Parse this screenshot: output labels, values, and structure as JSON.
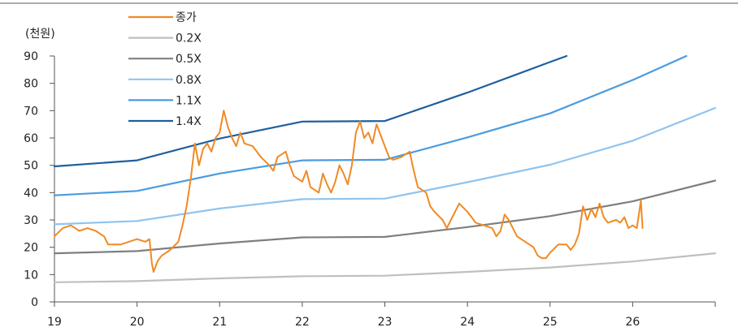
{
  "chart_data": {
    "type": "line",
    "ylabel": "(천원)",
    "xlim": [
      19,
      27
    ],
    "ylim": [
      0,
      90
    ],
    "x_ticks": [
      19,
      20,
      21,
      22,
      23,
      24,
      25,
      26
    ],
    "y_ticks": [
      0,
      10,
      20,
      30,
      40,
      50,
      60,
      70,
      80,
      90
    ],
    "legend_position": "top-left",
    "series": [
      {
        "name": "종가",
        "color": "#F08A24",
        "points": [
          [
            19.0,
            24
          ],
          [
            19.1,
            27
          ],
          [
            19.2,
            28
          ],
          [
            19.3,
            26
          ],
          [
            19.4,
            27
          ],
          [
            19.5,
            26
          ],
          [
            19.6,
            24
          ],
          [
            19.65,
            21
          ],
          [
            19.8,
            21
          ],
          [
            19.9,
            22
          ],
          [
            20.0,
            23
          ],
          [
            20.1,
            22
          ],
          [
            20.15,
            23
          ],
          [
            20.18,
            14
          ],
          [
            20.2,
            11
          ],
          [
            20.25,
            15
          ],
          [
            20.3,
            17
          ],
          [
            20.4,
            19
          ],
          [
            20.5,
            22
          ],
          [
            20.55,
            28
          ],
          [
            20.6,
            35
          ],
          [
            20.65,
            45
          ],
          [
            20.7,
            58
          ],
          [
            20.75,
            50
          ],
          [
            20.8,
            56
          ],
          [
            20.85,
            58
          ],
          [
            20.9,
            55
          ],
          [
            20.95,
            60
          ],
          [
            21.0,
            62
          ],
          [
            21.05,
            70
          ],
          [
            21.1,
            64
          ],
          [
            21.15,
            60
          ],
          [
            21.2,
            57
          ],
          [
            21.25,
            62
          ],
          [
            21.3,
            58
          ],
          [
            21.4,
            57
          ],
          [
            21.5,
            53
          ],
          [
            21.6,
            50
          ],
          [
            21.65,
            48
          ],
          [
            21.7,
            53
          ],
          [
            21.8,
            55
          ],
          [
            21.85,
            50
          ],
          [
            21.9,
            46
          ],
          [
            22.0,
            44
          ],
          [
            22.05,
            48
          ],
          [
            22.1,
            42
          ],
          [
            22.2,
            40
          ],
          [
            22.25,
            47
          ],
          [
            22.3,
            43
          ],
          [
            22.35,
            40
          ],
          [
            22.4,
            44
          ],
          [
            22.45,
            50
          ],
          [
            22.5,
            47
          ],
          [
            22.55,
            43
          ],
          [
            22.6,
            50
          ],
          [
            22.65,
            62
          ],
          [
            22.7,
            66
          ],
          [
            22.75,
            60
          ],
          [
            22.8,
            62
          ],
          [
            22.85,
            58
          ],
          [
            22.9,
            65
          ],
          [
            23.0,
            57
          ],
          [
            23.05,
            53
          ],
          [
            23.1,
            52
          ],
          [
            23.2,
            53
          ],
          [
            23.3,
            55
          ],
          [
            23.35,
            48
          ],
          [
            23.4,
            42
          ],
          [
            23.5,
            40
          ],
          [
            23.55,
            35
          ],
          [
            23.6,
            33
          ],
          [
            23.7,
            30
          ],
          [
            23.75,
            27
          ],
          [
            23.8,
            30
          ],
          [
            23.9,
            36
          ],
          [
            24.0,
            33
          ],
          [
            24.1,
            29
          ],
          [
            24.2,
            28
          ],
          [
            24.3,
            27
          ],
          [
            24.35,
            24
          ],
          [
            24.4,
            26
          ],
          [
            24.45,
            32
          ],
          [
            24.5,
            30
          ],
          [
            24.55,
            27
          ],
          [
            24.6,
            24
          ],
          [
            24.7,
            22
          ],
          [
            24.8,
            20
          ],
          [
            24.85,
            17
          ],
          [
            24.9,
            16
          ],
          [
            24.95,
            16
          ],
          [
            25.0,
            18
          ],
          [
            25.1,
            21
          ],
          [
            25.2,
            21
          ],
          [
            25.25,
            19
          ],
          [
            25.3,
            21
          ],
          [
            25.35,
            25
          ],
          [
            25.4,
            35
          ],
          [
            25.45,
            30
          ],
          [
            25.5,
            34
          ],
          [
            25.55,
            31
          ],
          [
            25.6,
            36
          ],
          [
            25.65,
            31
          ],
          [
            25.7,
            29
          ],
          [
            25.8,
            30
          ],
          [
            25.85,
            29
          ],
          [
            25.9,
            31
          ],
          [
            25.95,
            27
          ],
          [
            26.0,
            28
          ],
          [
            26.05,
            27
          ],
          [
            26.1,
            37
          ],
          [
            26.12,
            27
          ]
        ]
      },
      {
        "name": "0.2X",
        "color": "#BFBFBF",
        "points": [
          [
            19,
            7.2
          ],
          [
            20,
            7.6
          ],
          [
            21,
            8.6
          ],
          [
            22,
            9.4
          ],
          [
            23,
            9.6
          ],
          [
            24,
            11
          ],
          [
            25,
            12.6
          ],
          [
            26,
            14.8
          ],
          [
            27,
            17.8
          ]
        ]
      },
      {
        "name": "0.5X",
        "color": "#7F7F7F",
        "points": [
          [
            19,
            17.8
          ],
          [
            20,
            18.6
          ],
          [
            21,
            21.4
          ],
          [
            22,
            23.6
          ],
          [
            23,
            23.8
          ],
          [
            24,
            27.4
          ],
          [
            25,
            31.4
          ],
          [
            26,
            36.8
          ],
          [
            27,
            44.4
          ]
        ]
      },
      {
        "name": "0.8X",
        "color": "#8EC4F0",
        "points": [
          [
            19,
            28.4
          ],
          [
            20,
            29.6
          ],
          [
            21,
            34.2
          ],
          [
            22,
            37.6
          ],
          [
            23,
            37.8
          ],
          [
            24,
            43.8
          ],
          [
            25,
            50.2
          ],
          [
            26,
            59
          ],
          [
            27,
            71
          ]
        ]
      },
      {
        "name": "1.1X",
        "color": "#4A9BE0",
        "points": [
          [
            19,
            39
          ],
          [
            20,
            40.6
          ],
          [
            21,
            47
          ],
          [
            22,
            51.8
          ],
          [
            23,
            52
          ],
          [
            24,
            60.2
          ],
          [
            25,
            69
          ],
          [
            26,
            81.2
          ],
          [
            26.65,
            90
          ]
        ]
      },
      {
        "name": "1.4X",
        "color": "#1F5F9E",
        "points": [
          [
            19,
            49.6
          ],
          [
            20,
            51.8
          ],
          [
            21,
            59.8
          ],
          [
            22,
            66
          ],
          [
            23,
            66.2
          ],
          [
            24,
            76.6
          ],
          [
            25,
            87.8
          ],
          [
            25.2,
            90
          ]
        ]
      }
    ]
  }
}
